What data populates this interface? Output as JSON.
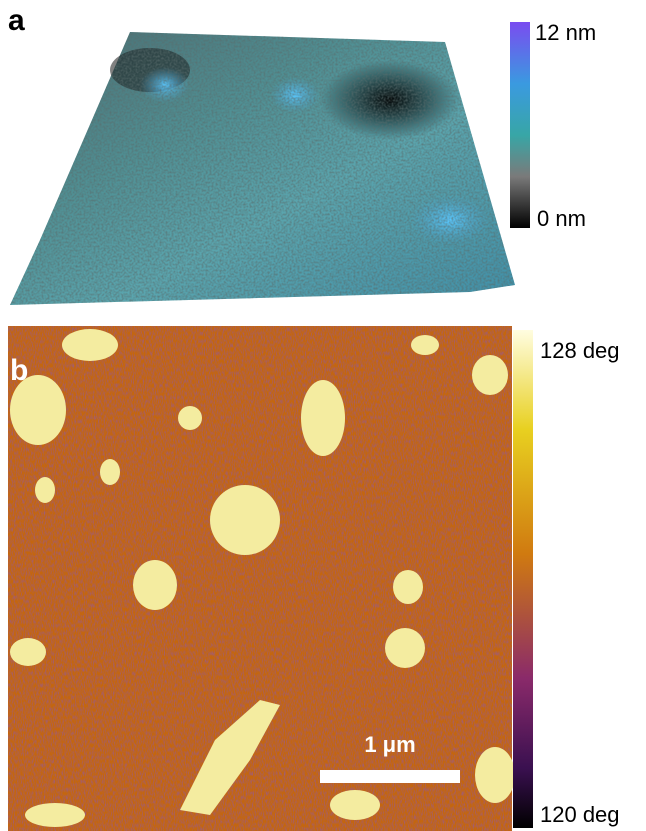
{
  "panel_a": {
    "label": "a",
    "colorbar": {
      "max_label": "12 nm",
      "min_label": "0 nm"
    }
  },
  "panel_b": {
    "label": "b",
    "colorbar": {
      "max_label": "128 deg",
      "min_label": "120 deg"
    },
    "scale_bar": "1 μm"
  }
}
